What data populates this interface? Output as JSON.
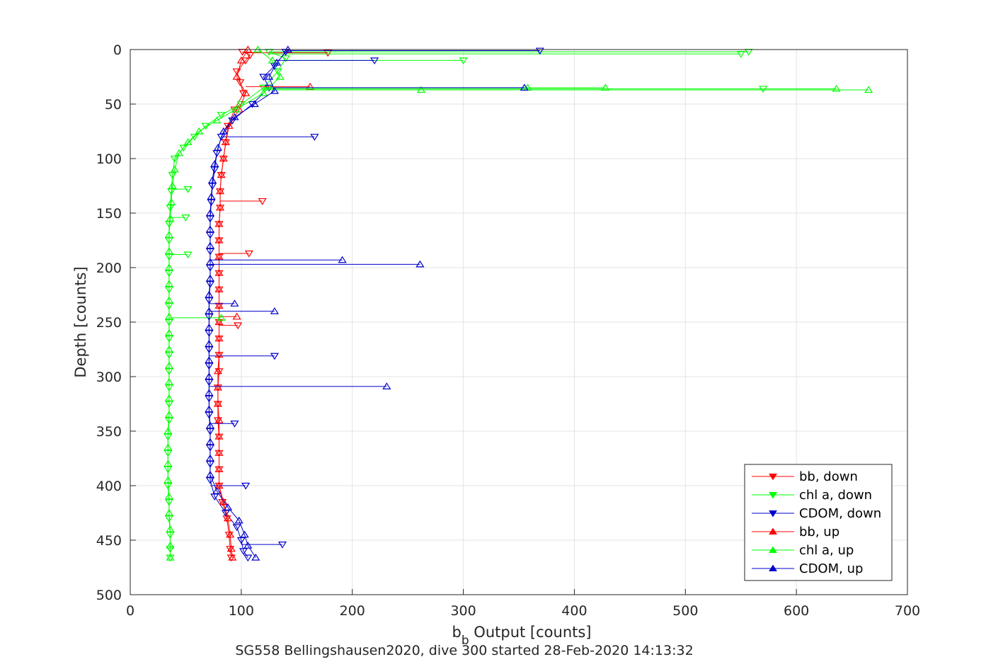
{
  "chart_data": {
    "type": "line",
    "title": "",
    "xlabel_main": "b",
    "xlabel_sub": "b",
    "xlabel_rest": " Output [counts]",
    "ylabel": "Depth [counts]",
    "caption": "SG558 Bellingshausen2020, dive 300 started 28-Feb-2020 14:13:32",
    "xlim": [
      0,
      700
    ],
    "ylim": [
      0,
      500
    ],
    "y_reversed": true,
    "grid": true,
    "legend_position": "bottom-right",
    "x_ticks": [
      "0",
      "100",
      "200",
      "300",
      "400",
      "500",
      "600",
      "700"
    ],
    "y_ticks": [
      "0",
      "50",
      "100",
      "150",
      "200",
      "250",
      "300",
      "350",
      "400",
      "450",
      "500"
    ],
    "series": [
      {
        "name": "bb, down",
        "color": "#ff0000",
        "marker": "triangle-down",
        "points": [
          [
            101,
            2
          ],
          [
            108,
            5
          ],
          [
            104,
            10
          ],
          [
            96,
            20
          ],
          [
            99,
            30
          ],
          [
            102,
            40
          ],
          [
            94,
            55
          ],
          [
            88,
            70
          ],
          [
            86,
            85
          ],
          [
            84,
            100
          ],
          [
            82,
            115
          ],
          [
            81,
            130
          ],
          [
            81,
            145
          ],
          [
            80,
            160
          ],
          [
            80,
            175
          ],
          [
            80,
            190
          ],
          [
            80,
            205
          ],
          [
            80,
            220
          ],
          [
            80,
            235
          ],
          [
            80,
            250
          ],
          [
            80,
            265
          ],
          [
            80,
            280
          ],
          [
            80,
            295
          ],
          [
            79,
            310
          ],
          [
            79,
            325
          ],
          [
            79,
            340
          ],
          [
            80,
            355
          ],
          [
            80,
            370
          ],
          [
            80,
            385
          ],
          [
            80,
            400
          ],
          [
            83,
            415
          ],
          [
            87,
            430
          ],
          [
            89,
            445
          ],
          [
            90,
            458
          ],
          [
            91,
            466
          ]
        ],
        "spikes": [
          [
            178,
            3
          ],
          [
            119,
            139
          ],
          [
            107,
            187
          ],
          [
            97,
            253
          ]
        ]
      },
      {
        "name": "chl a, down",
        "color": "#00ff00",
        "marker": "triangle-down",
        "points": [
          [
            125,
            2
          ],
          [
            140,
            8
          ],
          [
            133,
            20
          ],
          [
            120,
            35
          ],
          [
            100,
            50
          ],
          [
            82,
            60
          ],
          [
            68,
            70
          ],
          [
            58,
            80
          ],
          [
            48,
            90
          ],
          [
            40,
            100
          ],
          [
            38,
            115
          ],
          [
            37,
            130
          ],
          [
            36,
            145
          ],
          [
            35,
            160
          ],
          [
            35,
            175
          ],
          [
            35,
            190
          ],
          [
            35,
            205
          ],
          [
            35,
            220
          ],
          [
            35,
            235
          ],
          [
            35,
            250
          ],
          [
            35,
            265
          ],
          [
            35,
            280
          ],
          [
            35,
            295
          ],
          [
            35,
            310
          ],
          [
            35,
            325
          ],
          [
            35,
            340
          ],
          [
            34,
            355
          ],
          [
            34,
            370
          ],
          [
            34,
            385
          ],
          [
            34,
            400
          ],
          [
            35,
            415
          ],
          [
            35,
            430
          ],
          [
            36,
            445
          ],
          [
            36,
            458
          ],
          [
            36,
            466
          ]
        ],
        "spikes": [
          [
            557,
            2
          ],
          [
            550,
            4
          ],
          [
            300,
            10
          ],
          [
            570,
            36
          ],
          [
            52,
            188
          ],
          [
            50,
            154
          ],
          [
            52,
            128
          ]
        ]
      },
      {
        "name": "CDOM, down",
        "color": "#0000cc",
        "marker": "triangle-down",
        "points": [
          [
            140,
            2
          ],
          [
            130,
            15
          ],
          [
            120,
            25
          ],
          [
            125,
            35
          ],
          [
            110,
            50
          ],
          [
            92,
            65
          ],
          [
            82,
            80
          ],
          [
            78,
            95
          ],
          [
            76,
            110
          ],
          [
            74,
            125
          ],
          [
            73,
            140
          ],
          [
            72,
            155
          ],
          [
            72,
            170
          ],
          [
            72,
            185
          ],
          [
            72,
            200
          ],
          [
            72,
            215
          ],
          [
            71,
            230
          ],
          [
            71,
            245
          ],
          [
            71,
            260
          ],
          [
            71,
            275
          ],
          [
            71,
            290
          ],
          [
            71,
            305
          ],
          [
            71,
            320
          ],
          [
            71,
            335
          ],
          [
            72,
            350
          ],
          [
            72,
            365
          ],
          [
            72,
            380
          ],
          [
            72,
            395
          ],
          [
            76,
            410
          ],
          [
            86,
            425
          ],
          [
            96,
            438
          ],
          [
            100,
            450
          ],
          [
            102,
            460
          ],
          [
            106,
            466
          ]
        ],
        "spikes": [
          [
            369,
            1
          ],
          [
            220,
            10
          ],
          [
            166,
            80
          ],
          [
            130,
            281
          ],
          [
            137,
            454
          ],
          [
            94,
            343
          ],
          [
            104,
            400
          ]
        ]
      },
      {
        "name": "bb, up",
        "color": "#ff0000",
        "marker": "triangle-up",
        "points": [
          [
            106,
            0
          ],
          [
            100,
            10
          ],
          [
            96,
            25
          ],
          [
            104,
            40
          ],
          [
            98,
            55
          ],
          [
            89,
            70
          ],
          [
            86,
            85
          ],
          [
            84,
            100
          ],
          [
            82,
            115
          ],
          [
            81,
            130
          ],
          [
            81,
            145
          ],
          [
            80,
            160
          ],
          [
            80,
            175
          ],
          [
            80,
            190
          ],
          [
            80,
            205
          ],
          [
            80,
            220
          ],
          [
            80,
            235
          ],
          [
            80,
            250
          ],
          [
            80,
            265
          ],
          [
            80,
            280
          ],
          [
            79,
            295
          ],
          [
            79,
            310
          ],
          [
            79,
            325
          ],
          [
            80,
            340
          ],
          [
            80,
            355
          ],
          [
            80,
            370
          ],
          [
            80,
            385
          ],
          [
            80,
            400
          ],
          [
            84,
            415
          ],
          [
            88,
            430
          ],
          [
            90,
            445
          ],
          [
            91,
            458
          ],
          [
            92,
            466
          ]
        ],
        "spikes": [
          [
            162,
            34
          ],
          [
            96,
            245
          ]
        ]
      },
      {
        "name": "chl a, up",
        "color": "#00ff00",
        "marker": "triangle-up",
        "points": [
          [
            115,
            0
          ],
          [
            128,
            10
          ],
          [
            135,
            25
          ],
          [
            120,
            40
          ],
          [
            95,
            55
          ],
          [
            78,
            65
          ],
          [
            62,
            75
          ],
          [
            52,
            85
          ],
          [
            44,
            95
          ],
          [
            40,
            110
          ],
          [
            38,
            125
          ],
          [
            37,
            140
          ],
          [
            36,
            155
          ],
          [
            35,
            170
          ],
          [
            35,
            185
          ],
          [
            35,
            200
          ],
          [
            35,
            215
          ],
          [
            35,
            230
          ],
          [
            35,
            245
          ],
          [
            35,
            260
          ],
          [
            35,
            275
          ],
          [
            35,
            290
          ],
          [
            35,
            305
          ],
          [
            35,
            320
          ],
          [
            35,
            335
          ],
          [
            34,
            350
          ],
          [
            34,
            365
          ],
          [
            34,
            380
          ],
          [
            34,
            395
          ],
          [
            35,
            410
          ],
          [
            35,
            425
          ],
          [
            36,
            440
          ],
          [
            36,
            455
          ],
          [
            36,
            466
          ]
        ],
        "spikes": [
          [
            665,
            37
          ],
          [
            636,
            36
          ],
          [
            428,
            35
          ],
          [
            358,
            35
          ],
          [
            262,
            37
          ],
          [
            82,
            246
          ]
        ]
      },
      {
        "name": "CDOM, up",
        "color": "#0000cc",
        "marker": "triangle-up",
        "points": [
          [
            142,
            0
          ],
          [
            132,
            12
          ],
          [
            125,
            25
          ],
          [
            130,
            38
          ],
          [
            112,
            50
          ],
          [
            94,
            62
          ],
          [
            84,
            75
          ],
          [
            79,
            90
          ],
          [
            76,
            105
          ],
          [
            74,
            120
          ],
          [
            73,
            135
          ],
          [
            72,
            150
          ],
          [
            72,
            165
          ],
          [
            72,
            180
          ],
          [
            72,
            195
          ],
          [
            72,
            210
          ],
          [
            71,
            225
          ],
          [
            71,
            240
          ],
          [
            71,
            255
          ],
          [
            71,
            270
          ],
          [
            71,
            285
          ],
          [
            71,
            300
          ],
          [
            71,
            315
          ],
          [
            71,
            330
          ],
          [
            72,
            345
          ],
          [
            72,
            360
          ],
          [
            72,
            375
          ],
          [
            72,
            390
          ],
          [
            78,
            405
          ],
          [
            88,
            420
          ],
          [
            98,
            432
          ],
          [
            103,
            445
          ],
          [
            106,
            455
          ],
          [
            113,
            466
          ]
        ],
        "spikes": [
          [
            261,
            197
          ],
          [
            191,
            193
          ],
          [
            231,
            309
          ],
          [
            94,
            233
          ],
          [
            355,
            35
          ],
          [
            130,
            240
          ]
        ]
      }
    ]
  }
}
